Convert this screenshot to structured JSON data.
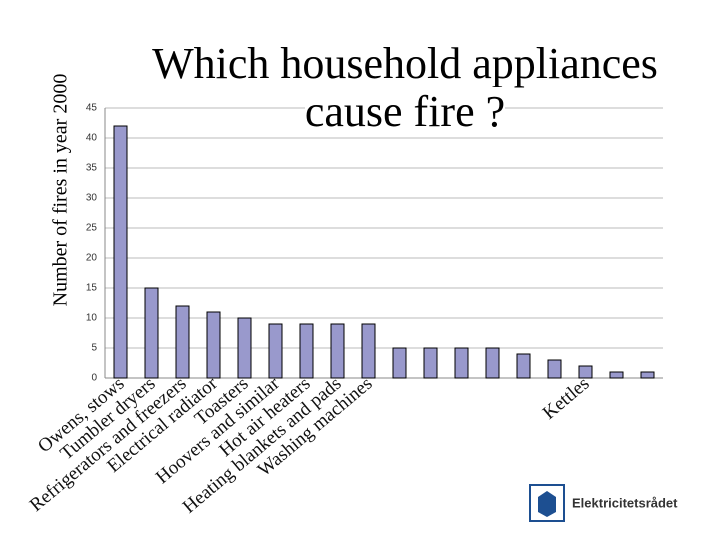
{
  "chart_data": {
    "type": "bar",
    "title": "Which household appliances cause fire ?",
    "y_label": "Number of fires in year 2000",
    "categories": [
      "Owens, stows",
      "Tumbler dryers",
      "Refrigerators and freezers",
      "Electrical radiator",
      "Toasters",
      "Hoovers and similar",
      "Hot air heaters",
      "Heating blankets and pads",
      "Washing machines",
      null,
      null,
      null,
      null,
      null,
      null,
      "Kettles",
      null,
      null
    ],
    "values": [
      42,
      15,
      12,
      11,
      10,
      9,
      9,
      9,
      9,
      5,
      5,
      5,
      5,
      4,
      3,
      2,
      1,
      1
    ],
    "color": "#9999cc",
    "ylim": [
      0,
      45
    ],
    "yticks": [
      0,
      5,
      10,
      15,
      20,
      25,
      30,
      35,
      40,
      45
    ],
    "grid": true
  },
  "logo": {
    "text": "Elektricitetsrådet"
  }
}
